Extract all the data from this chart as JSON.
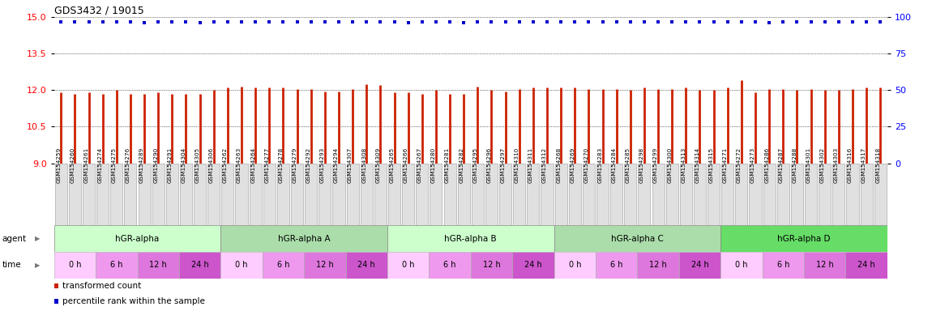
{
  "title": "GDS3432 / 19015",
  "gsm_labels": [
    "GSM154259",
    "GSM154260",
    "GSM154261",
    "GSM154274",
    "GSM154275",
    "GSM154276",
    "GSM154289",
    "GSM154290",
    "GSM154291",
    "GSM154304",
    "GSM154305",
    "GSM154306",
    "GSM154262",
    "GSM154263",
    "GSM154264",
    "GSM154277",
    "GSM154278",
    "GSM154279",
    "GSM154292",
    "GSM154293",
    "GSM154294",
    "GSM154307",
    "GSM154308",
    "GSM154309",
    "GSM154265",
    "GSM154266",
    "GSM154267",
    "GSM154280",
    "GSM154281",
    "GSM154282",
    "GSM154295",
    "GSM154296",
    "GSM154297",
    "GSM154310",
    "GSM154311",
    "GSM154312",
    "GSM154268",
    "GSM154269",
    "GSM154270",
    "GSM154283",
    "GSM154284",
    "GSM154285",
    "GSM154298",
    "GSM154299",
    "GSM154300",
    "GSM154313",
    "GSM154314",
    "GSM154315",
    "GSM154271",
    "GSM154272",
    "GSM154273",
    "GSM154286",
    "GSM154287",
    "GSM154288",
    "GSM154301",
    "GSM154302",
    "GSM154303",
    "GSM154316",
    "GSM154317",
    "GSM154318"
  ],
  "red_values": [
    11.9,
    11.85,
    11.9,
    11.85,
    12.0,
    11.85,
    11.85,
    11.9,
    11.85,
    11.85,
    11.85,
    12.0,
    12.1,
    12.15,
    12.1,
    12.1,
    12.1,
    12.05,
    12.05,
    11.95,
    11.95,
    12.05,
    12.25,
    12.2,
    11.9,
    11.9,
    11.85,
    12.0,
    11.85,
    11.85,
    12.15,
    12.0,
    11.95,
    12.05,
    12.1,
    12.1,
    12.1,
    12.1,
    12.05,
    12.05,
    12.05,
    12.0,
    12.1,
    12.05,
    12.05,
    12.1,
    12.0,
    12.0,
    12.1,
    12.4,
    11.9,
    12.05,
    12.05,
    12.0,
    12.05,
    12.0,
    12.0,
    12.05,
    12.1,
    12.1
  ],
  "blue_values": [
    97,
    97,
    97,
    97,
    97,
    97,
    96,
    97,
    97,
    97,
    96,
    97,
    97,
    97,
    97,
    97,
    97,
    97,
    97,
    97,
    97,
    97,
    97,
    97,
    97,
    96,
    97,
    97,
    97,
    96,
    97,
    97,
    97,
    97,
    97,
    97,
    97,
    97,
    97,
    97,
    97,
    97,
    97,
    97,
    97,
    97,
    97,
    97,
    97,
    97,
    97,
    96,
    97,
    97,
    97,
    97,
    97,
    97,
    97,
    97
  ],
  "agents": [
    {
      "label": "hGR-alpha",
      "start": 0,
      "end": 12
    },
    {
      "label": "hGR-alpha A",
      "start": 12,
      "end": 24
    },
    {
      "label": "hGR-alpha B",
      "start": 24,
      "end": 36
    },
    {
      "label": "hGR-alpha C",
      "start": 36,
      "end": 48
    },
    {
      "label": "hGR-alpha D",
      "start": 48,
      "end": 60
    }
  ],
  "agent_colors": [
    "#ccffcc",
    "#aaddaa",
    "#ccffcc",
    "#aaddaa",
    "#66dd66"
  ],
  "time_pattern": [
    "0 h",
    "6 h",
    "12 h",
    "24 h"
  ],
  "time_colors": [
    "#ffccff",
    "#ee99ee",
    "#dd77dd",
    "#cc55cc"
  ],
  "ylim_left": [
    9,
    15
  ],
  "ylim_right": [
    0,
    100
  ],
  "yticks_left": [
    9,
    10.5,
    12,
    13.5,
    15
  ],
  "yticks_right": [
    0,
    25,
    50,
    75,
    100
  ],
  "bar_color": "#cc2200",
  "dot_color": "#0000cc",
  "grid_color": "#888888",
  "bg_color": "#ffffff",
  "legend_items": [
    {
      "label": "transformed count",
      "color": "#cc2200"
    },
    {
      "label": "percentile rank within the sample",
      "color": "#0000cc"
    }
  ]
}
